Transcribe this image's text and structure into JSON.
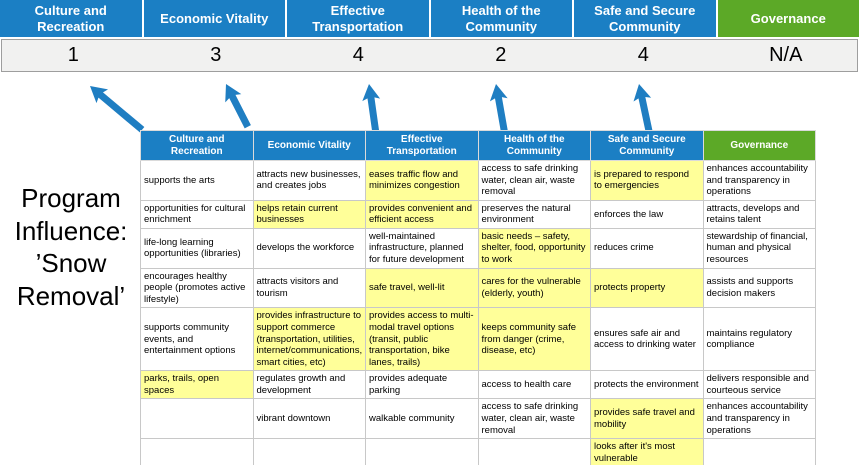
{
  "title": "Program Influence: ’Snow Removal’",
  "colors": {
    "header_blue": "#1B7FC4",
    "header_green": "#5CA927",
    "highlight_yellow": "#FFFF99",
    "arrow_blue": "#1F7EC2",
    "score_strip_bg": "#F1F1F0"
  },
  "scoreboard": {
    "columns": [
      {
        "label": "Culture and Recreation",
        "score": "1",
        "color": "#1B7FC4"
      },
      {
        "label": "Economic Vitality",
        "score": "3",
        "color": "#1B7FC4"
      },
      {
        "label": "Effective Transportation",
        "score": "4",
        "color": "#1B7FC4"
      },
      {
        "label": "Health of the Community",
        "score": "2",
        "color": "#1B7FC4"
      },
      {
        "label": "Safe and Secure Community",
        "score": "4",
        "color": "#1B7FC4"
      },
      {
        "label": "Governance",
        "score": "N/A",
        "color": "#5CA927"
      }
    ]
  },
  "matrix": {
    "headers": [
      {
        "label": "Culture and Recreation",
        "color": "#1B7FC4"
      },
      {
        "label": "Economic Vitality",
        "color": "#1B7FC4"
      },
      {
        "label": "Effective Transportation",
        "color": "#1B7FC4"
      },
      {
        "label": "Health of the Community",
        "color": "#1B7FC4"
      },
      {
        "label": "Safe and Secure Community",
        "color": "#1B7FC4"
      },
      {
        "label": "Governance",
        "color": "#5CA927"
      }
    ],
    "rows": [
      [
        {
          "text": "supports the arts",
          "highlight": false
        },
        {
          "text": "attracts new businesses, and creates jobs",
          "highlight": false
        },
        {
          "text": "eases traffic flow and minimizes congestion",
          "highlight": true
        },
        {
          "text": "access to safe drinking water, clean air, waste removal",
          "highlight": false
        },
        {
          "text": "is prepared to respond to emergencies",
          "highlight": true
        },
        {
          "text": "enhances accountability and transparency in operations",
          "highlight": false
        }
      ],
      [
        {
          "text": "opportunities for cultural enrichment",
          "highlight": false
        },
        {
          "text": "helps retain current businesses",
          "highlight": true
        },
        {
          "text": "provides convenient and efficient access",
          "highlight": true
        },
        {
          "text": "preserves the natural environment",
          "highlight": false
        },
        {
          "text": "enforces the law",
          "highlight": false
        },
        {
          "text": "attracts, develops and retains talent",
          "highlight": false
        }
      ],
      [
        {
          "text": "life-long learning opportunities (libraries)",
          "highlight": false
        },
        {
          "text": "develops the workforce",
          "highlight": false
        },
        {
          "text": "well-maintained infrastructure, planned for future development",
          "highlight": false
        },
        {
          "text": "basic needs – safety, shelter, food, opportunity to work",
          "highlight": true
        },
        {
          "text": "reduces crime",
          "highlight": false
        },
        {
          "text": "stewardship of financial, human and physical resources",
          "highlight": false
        }
      ],
      [
        {
          "text": "encourages healthy people (promotes active lifestyle)",
          "highlight": false
        },
        {
          "text": "attracts visitors and tourism",
          "highlight": false
        },
        {
          "text": "safe travel, well-lit",
          "highlight": true
        },
        {
          "text": "cares for the vulnerable (elderly, youth)",
          "highlight": true
        },
        {
          "text": "protects property",
          "highlight": true
        },
        {
          "text": "assists and supports decision makers",
          "highlight": false
        }
      ],
      [
        {
          "text": "supports community events, and entertainment options",
          "highlight": false
        },
        {
          "text": "provides infrastructure to support commerce (transportation, utilities, internet/communications, smart cities, etc)",
          "highlight": true
        },
        {
          "text": "provides access to multi-modal travel options (transit, public transportation, bike lanes, trails)",
          "highlight": true
        },
        {
          "text": "keeps community safe from danger (crime, disease, etc)",
          "highlight": true
        },
        {
          "text": "ensures safe air and access to drinking water",
          "highlight": false
        },
        {
          "text": "maintains regulatory compliance",
          "highlight": false
        }
      ],
      [
        {
          "text": "parks, trails, open spaces",
          "highlight": true
        },
        {
          "text": "regulates growth and development",
          "highlight": false
        },
        {
          "text": "provides adequate parking",
          "highlight": false
        },
        {
          "text": "access to health care",
          "highlight": false
        },
        {
          "text": "protects the environment",
          "highlight": false
        },
        {
          "text": "delivers responsible and courteous service",
          "highlight": false
        }
      ],
      [
        {
          "text": "",
          "highlight": false
        },
        {
          "text": "vibrant downtown",
          "highlight": false
        },
        {
          "text": "walkable community",
          "highlight": false
        },
        {
          "text": "access to safe drinking water, clean air, waste removal",
          "highlight": false
        },
        {
          "text": "provides safe travel and mobility",
          "highlight": true
        },
        {
          "text": "enhances accountability and transparency in operations",
          "highlight": false
        }
      ],
      [
        {
          "text": "",
          "highlight": false
        },
        {
          "text": "",
          "highlight": false
        },
        {
          "text": "",
          "highlight": false
        },
        {
          "text": "",
          "highlight": false
        },
        {
          "text": "looks after it's most vulnerable",
          "highlight": true
        },
        {
          "text": "",
          "highlight": false
        }
      ]
    ]
  }
}
